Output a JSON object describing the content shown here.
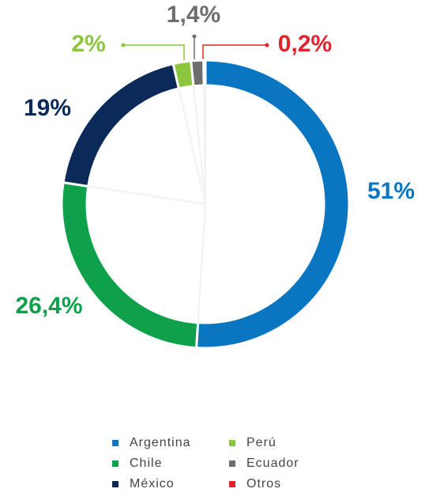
{
  "chart_data": {
    "type": "donut",
    "categories": [
      "Argentina",
      "Chile",
      "México",
      "Perú",
      "Ecuador",
      "Otros"
    ],
    "values": [
      51,
      26.4,
      19,
      2,
      1.4,
      0.2
    ],
    "value_labels": [
      "51%",
      "26,4%",
      "19%",
      "2%",
      "1,4%",
      "0,2%"
    ],
    "colors": [
      "#0a76c2",
      "#0ea04b",
      "#0b2a5a",
      "#8cc63f",
      "#6d6d6d",
      "#e3232c"
    ]
  }
}
